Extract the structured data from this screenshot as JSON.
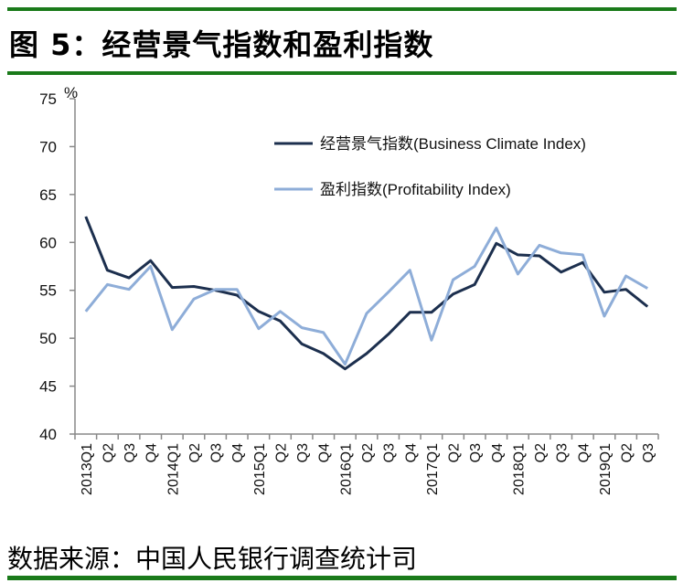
{
  "title": "图 5：经营景气指数和盈利指数",
  "source": "数据来源：中国人民银行调查统计司",
  "colors": {
    "rule": "#1a7a1a",
    "business": "#1c2f4e",
    "profit": "#8eadd8",
    "axis": "#888888"
  },
  "chart_data": {
    "type": "line",
    "title": "",
    "xlabel": "",
    "ylabel": "%",
    "ylim": [
      40,
      75
    ],
    "yticks": [
      "40",
      "45",
      "50",
      "55",
      "60",
      "65",
      "70",
      "75"
    ],
    "grid": false,
    "legend_position": "top-right",
    "categories": [
      "2013Q1",
      "Q2",
      "Q3",
      "Q4",
      "2014Q1",
      "Q2",
      "Q3",
      "Q4",
      "2015Q1",
      "Q2",
      "Q3",
      "Q4",
      "2016Q1",
      "Q2",
      "Q3",
      "Q4",
      "2017Q1",
      "Q2",
      "Q3",
      "Q4",
      "2018Q1",
      "Q2",
      "Q3",
      "Q4",
      "2019Q1",
      "Q2",
      "Q3"
    ],
    "series": [
      {
        "name": "经营景气指数(Business Climate Index)",
        "values": [
          62.7,
          57.1,
          56.3,
          58.1,
          55.3,
          55.4,
          55.0,
          54.5,
          52.8,
          51.8,
          49.4,
          48.4,
          46.8,
          48.4,
          50.4,
          52.7,
          52.7,
          54.6,
          55.6,
          59.9,
          58.7,
          58.6,
          56.9,
          57.9,
          54.8,
          55.1,
          53.3
        ]
      },
      {
        "name": "盈利指数(Profitability Index)",
        "values": [
          52.8,
          55.6,
          55.1,
          57.5,
          50.9,
          54.1,
          55.1,
          55.1,
          51.0,
          52.8,
          51.1,
          50.6,
          47.3,
          52.6,
          54.8,
          57.1,
          49.8,
          56.1,
          57.5,
          61.5,
          56.7,
          59.7,
          58.9,
          58.7,
          52.3,
          56.5,
          55.2
        ]
      }
    ]
  }
}
